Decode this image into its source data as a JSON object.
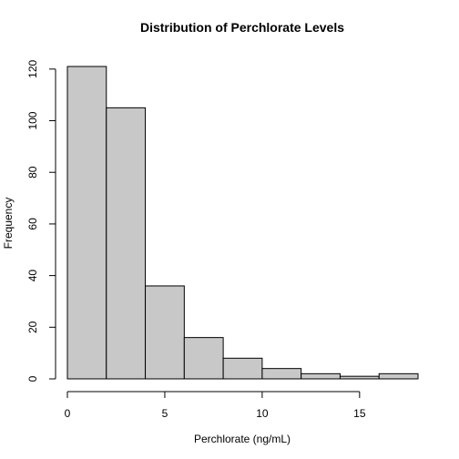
{
  "chart_data": {
    "type": "bar",
    "title": "Distribution of Perchlorate Levels",
    "xlabel": "Perchlorate (ng/mL)",
    "ylabel": "Frequency",
    "bins": [
      {
        "start": 0,
        "end": 2,
        "count": 121
      },
      {
        "start": 2,
        "end": 4,
        "count": 105
      },
      {
        "start": 4,
        "end": 6,
        "count": 36
      },
      {
        "start": 6,
        "end": 8,
        "count": 16
      },
      {
        "start": 8,
        "end": 10,
        "count": 8
      },
      {
        "start": 10,
        "end": 12,
        "count": 4
      },
      {
        "start": 12,
        "end": 14,
        "count": 2
      },
      {
        "start": 14,
        "end": 16,
        "count": 1
      },
      {
        "start": 16,
        "end": 18,
        "count": 2
      }
    ],
    "xticks": [
      0,
      5,
      10,
      15
    ],
    "yticks": [
      0,
      20,
      40,
      60,
      80,
      100,
      120
    ],
    "xlim": [
      0,
      18
    ],
    "ylim": [
      0,
      121
    ],
    "bar_color": "#c8c8c8",
    "edge_color": "#000000",
    "grid": false
  }
}
